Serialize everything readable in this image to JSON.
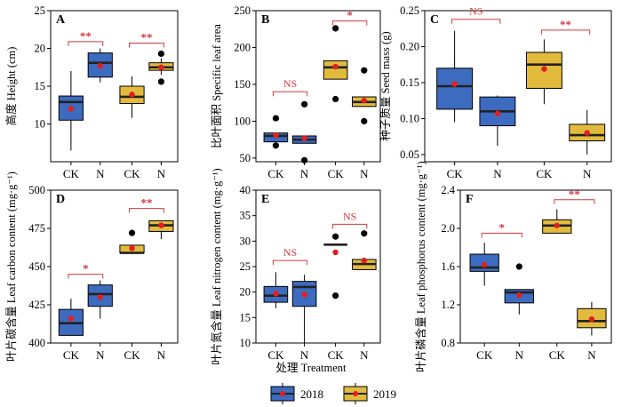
{
  "figure": {
    "xlabel": "处理 Treatment",
    "legend": [
      {
        "label": "2018",
        "color": "#3d6bbf"
      },
      {
        "label": "2019",
        "color": "#e2bb3c"
      }
    ],
    "colors": {
      "box2018": "#3d6bbf",
      "box2019": "#e2bb3c",
      "mean": "#e02020",
      "sig": "#d9363e",
      "median": "#222222"
    }
  },
  "chart_data": [
    {
      "id": "A",
      "type": "box",
      "ylabel": "高度 Height (cm)",
      "ylim": [
        5,
        25
      ],
      "yticks": [
        10,
        15,
        20,
        25
      ],
      "tick_decimals": 0,
      "categories": [
        "CK",
        "N",
        "CK",
        "N"
      ],
      "boxes": [
        {
          "series": "2018",
          "q1": 10.5,
          "median": 12.9,
          "q3": 13.7,
          "wlow": 6.5,
          "whigh": 17.0,
          "mean": 12.0,
          "outliers": []
        },
        {
          "series": "2018",
          "q1": 16.2,
          "median": 18.1,
          "q3": 19.4,
          "wlow": 15.5,
          "whigh": 20.0,
          "mean": 17.7,
          "outliers": []
        },
        {
          "series": "2019",
          "q1": 12.7,
          "median": 13.6,
          "q3": 15.0,
          "wlow": 10.8,
          "whigh": 16.3,
          "mean": 13.9,
          "outliers": []
        },
        {
          "series": "2019",
          "q1": 17.1,
          "median": 17.5,
          "q3": 18.1,
          "wlow": 16.5,
          "whigh": 18.7,
          "mean": 17.5,
          "outliers": [
            19.3,
            15.6
          ]
        }
      ],
      "significance": [
        {
          "pair": [
            0,
            1
          ],
          "label": "**",
          "y": 20.9
        },
        {
          "pair": [
            2,
            3
          ],
          "label": "**",
          "y": 20.7
        }
      ]
    },
    {
      "id": "B",
      "type": "box",
      "ylabel": "比叶面积 Specific leaf area",
      "ylim": [
        45,
        250
      ],
      "yticks": [
        50,
        100,
        150,
        200,
        250
      ],
      "tick_decimals": 0,
      "categories": [
        "CK",
        "N",
        "CK",
        "N"
      ],
      "boxes": [
        {
          "series": "2018",
          "q1": 72,
          "median": 80,
          "q3": 84,
          "wlow": 72,
          "whigh": 84,
          "mean": 81,
          "outliers": [
            104,
            67
          ]
        },
        {
          "series": "2018",
          "q1": 70,
          "median": 75,
          "q3": 80,
          "wlow": 70,
          "whigh": 80,
          "mean": 77,
          "outliers": [
            123,
            47
          ]
        },
        {
          "series": "2019",
          "q1": 157,
          "median": 173,
          "q3": 182,
          "wlow": 157,
          "whigh": 182,
          "mean": 174,
          "outliers": [
            226,
            130
          ]
        },
        {
          "series": "2019",
          "q1": 120,
          "median": 126,
          "q3": 133,
          "wlow": 120,
          "whigh": 133,
          "mean": 128,
          "outliers": [
            169,
            100
          ]
        }
      ],
      "significance": [
        {
          "pair": [
            0,
            1
          ],
          "label": "NS",
          "y": 140
        },
        {
          "pair": [
            2,
            3
          ],
          "label": "*",
          "y": 236
        }
      ]
    },
    {
      "id": "C",
      "type": "box",
      "ylabel": "种子质量 Seed mass (g)",
      "ylim": [
        0.04,
        0.25
      ],
      "yticks": [
        0.05,
        0.1,
        0.15,
        0.2,
        0.25
      ],
      "tick_decimals": 2,
      "categories": [
        "CK",
        "N",
        "CK",
        "N"
      ],
      "boxes": [
        {
          "series": "2018",
          "q1": 0.113,
          "median": 0.145,
          "q3": 0.17,
          "wlow": 0.095,
          "whigh": 0.222,
          "mean": 0.148,
          "outliers": []
        },
        {
          "series": "2018",
          "q1": 0.09,
          "median": 0.11,
          "q3": 0.13,
          "wlow": 0.062,
          "whigh": 0.132,
          "mean": 0.107,
          "outliers": []
        },
        {
          "series": "2019",
          "q1": 0.142,
          "median": 0.175,
          "q3": 0.192,
          "wlow": 0.12,
          "whigh": 0.21,
          "mean": 0.169,
          "outliers": []
        },
        {
          "series": "2019",
          "q1": 0.069,
          "median": 0.077,
          "q3": 0.092,
          "wlow": 0.05,
          "whigh": 0.112,
          "mean": 0.08,
          "outliers": []
        }
      ],
      "significance": [
        {
          "pair": [
            0,
            1
          ],
          "label": "NS",
          "y": 0.238
        },
        {
          "pair": [
            2,
            3
          ],
          "label": "**",
          "y": 0.223
        }
      ]
    },
    {
      "id": "D",
      "type": "box",
      "ylabel": "叶片碳含量 Leaf carbon content (mg·g⁻¹)",
      "ylim": [
        400,
        500
      ],
      "yticks": [
        400,
        425,
        450,
        475,
        500
      ],
      "tick_decimals": 0,
      "categories": [
        "CK",
        "N",
        "CK",
        "N"
      ],
      "boxes": [
        {
          "series": "2018",
          "q1": 405,
          "median": 413,
          "q3": 422,
          "wlow": 405,
          "whigh": 429,
          "mean": 416,
          "outliers": []
        },
        {
          "series": "2018",
          "q1": 424,
          "median": 432,
          "q3": 438,
          "wlow": 416,
          "whigh": 441,
          "mean": 430,
          "outliers": []
        },
        {
          "series": "2019",
          "q1": 459,
          "median": 459,
          "q3": 464,
          "wlow": 459,
          "whigh": 464,
          "mean": 462,
          "outliers": [
            472
          ]
        },
        {
          "series": "2019",
          "q1": 473,
          "median": 477,
          "q3": 480,
          "wlow": 468,
          "whigh": 480,
          "mean": 477,
          "outliers": []
        }
      ],
      "significance": [
        {
          "pair": [
            0,
            1
          ],
          "label": "*",
          "y": 445
        },
        {
          "pair": [
            2,
            3
          ],
          "label": "**",
          "y": 488
        }
      ]
    },
    {
      "id": "E",
      "type": "box",
      "ylabel": "叶片氮含量 Leaf nitrogen content (mg·g⁻¹)",
      "ylim": [
        10,
        40
      ],
      "yticks": [
        10,
        15,
        20,
        25,
        30,
        35,
        40
      ],
      "tick_decimals": 0,
      "categories": [
        "CK",
        "N",
        "CK",
        "N"
      ],
      "boxes": [
        {
          "series": "2018",
          "q1": 18.0,
          "median": 19.3,
          "q3": 21.1,
          "wlow": 16.8,
          "whigh": 23.9,
          "mean": 19.7,
          "outliers": []
        },
        {
          "series": "2018",
          "q1": 17.2,
          "median": 21.0,
          "q3": 22.1,
          "wlow": 10.0,
          "whigh": 23.4,
          "mean": 19.5,
          "outliers": []
        },
        {
          "series": "2019",
          "q1": 29.3,
          "median": 29.3,
          "q3": 29.3,
          "wlow": 29.3,
          "whigh": 29.3,
          "mean": 27.8,
          "outliers": [
            30.9,
            19.3
          ]
        },
        {
          "series": "2019",
          "q1": 24.4,
          "median": 25.5,
          "q3": 26.4,
          "wlow": 24.4,
          "whigh": 26.4,
          "mean": 26.2,
          "outliers": [
            31.5
          ]
        }
      ],
      "significance": [
        {
          "pair": [
            0,
            1
          ],
          "label": "NS",
          "y": 26.2
        },
        {
          "pair": [
            2,
            3
          ],
          "label": "NS",
          "y": 33.3
        }
      ]
    },
    {
      "id": "F",
      "type": "box",
      "ylabel": "叶片磷含量 Leaf phosphorus content (mg·g⁻¹)",
      "ylim": [
        0.8,
        2.4
      ],
      "yticks": [
        0.8,
        1.2,
        1.6,
        2.0,
        2.4
      ],
      "tick_decimals": 1,
      "categories": [
        "CK",
        "N",
        "CK",
        "N"
      ],
      "boxes": [
        {
          "series": "2018",
          "q1": 1.55,
          "median": 1.59,
          "q3": 1.73,
          "wlow": 1.4,
          "whigh": 1.85,
          "mean": 1.62,
          "outliers": []
        },
        {
          "series": "2018",
          "q1": 1.22,
          "median": 1.33,
          "q3": 1.36,
          "wlow": 1.1,
          "whigh": 1.36,
          "mean": 1.3,
          "outliers": [
            1.6
          ]
        },
        {
          "series": "2019",
          "q1": 1.95,
          "median": 2.03,
          "q3": 2.09,
          "wlow": 1.95,
          "whigh": 2.2,
          "mean": 2.03,
          "outliers": []
        },
        {
          "series": "2019",
          "q1": 0.96,
          "median": 1.03,
          "q3": 1.16,
          "wlow": 0.88,
          "whigh": 1.23,
          "mean": 1.05,
          "outliers": []
        }
      ],
      "significance": [
        {
          "pair": [
            0,
            1
          ],
          "label": "*",
          "y": 1.95
        },
        {
          "pair": [
            2,
            3
          ],
          "label": "**",
          "y": 2.3
        }
      ]
    }
  ]
}
